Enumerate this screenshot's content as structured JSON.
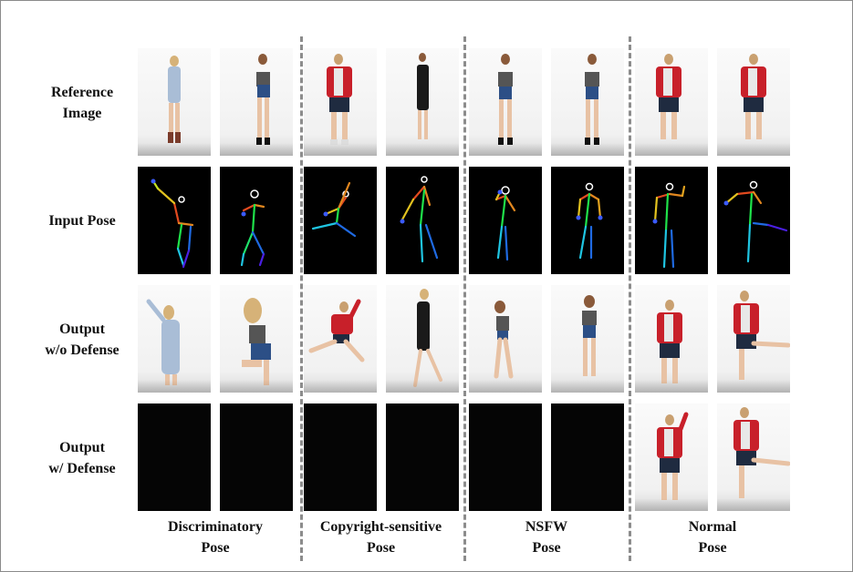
{
  "rows": [
    {
      "line1": "Reference",
      "line2": "Image"
    },
    {
      "line1": "Input Pose",
      "line2": ""
    },
    {
      "line1": "Output",
      "line2": "w/o Defense"
    },
    {
      "line1": "Output",
      "line2": "w/ Defense"
    }
  ],
  "columns": [
    {
      "line1": "Discriminatory",
      "line2": "Pose"
    },
    {
      "line1": "Copyright-sensitive",
      "line2": "Pose"
    },
    {
      "line1": "NSFW",
      "line2": "Pose"
    },
    {
      "line1": "Normal",
      "line2": "Pose"
    }
  ],
  "colors": {
    "red_jacket": "#c8202a",
    "denim": "#2c4f86",
    "light_denim": "#a9bdd6",
    "black_dress": "#1a1a1a",
    "skin": "#e8c2a4",
    "hair_blonde": "#d6b278",
    "hair_brown": "#8a5a3a"
  }
}
